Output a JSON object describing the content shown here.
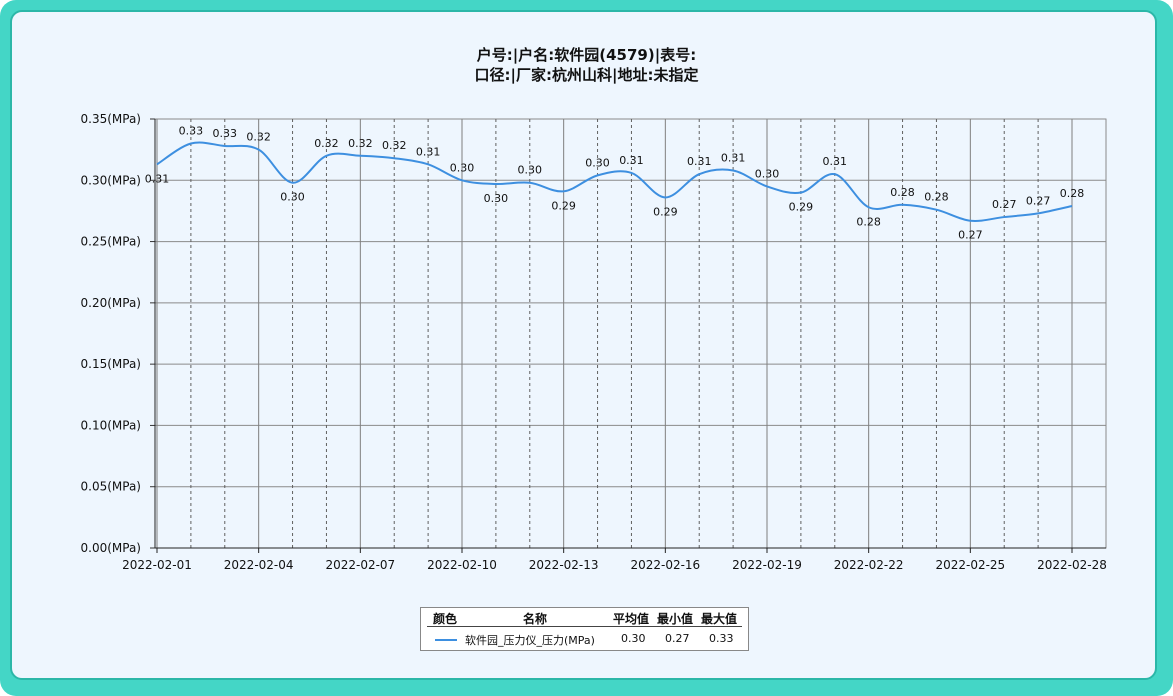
{
  "title_line1": "户号:|户名:软件园(4579)|表号:",
  "title_line2": "口径:|厂家:杭州山科|地址:未指定",
  "chart_data": {
    "type": "line",
    "series_color": "#3d8fe0",
    "y_ticks": [
      "0.00(MPa)",
      "0.05(MPa)",
      "0.10(MPa)",
      "0.15(MPa)",
      "0.20(MPa)",
      "0.25(MPa)",
      "0.30(MPa)",
      "0.35(MPa)"
    ],
    "ylim": [
      0,
      0.35
    ],
    "x_ticks": [
      "2022-02-01",
      "2022-02-04",
      "2022-02-07",
      "2022-02-10",
      "2022-02-13",
      "2022-02-16",
      "2022-02-19",
      "2022-02-22",
      "2022-02-25",
      "2022-02-28"
    ],
    "x": [
      "2022-02-01",
      "2022-02-02",
      "2022-02-03",
      "2022-02-04",
      "2022-02-05",
      "2022-02-06",
      "2022-02-07",
      "2022-02-08",
      "2022-02-09",
      "2022-02-10",
      "2022-02-11",
      "2022-02-12",
      "2022-02-13",
      "2022-02-14",
      "2022-02-15",
      "2022-02-16",
      "2022-02-17",
      "2022-02-18",
      "2022-02-19",
      "2022-02-20",
      "2022-02-21",
      "2022-02-22",
      "2022-02-23",
      "2022-02-24",
      "2022-02-25",
      "2022-02-26",
      "2022-02-27",
      "2022-02-28"
    ],
    "values": [
      0.313,
      0.33,
      0.328,
      0.325,
      0.298,
      0.32,
      0.32,
      0.318,
      0.313,
      0.3,
      0.297,
      0.298,
      0.291,
      0.304,
      0.306,
      0.286,
      0.305,
      0.308,
      0.295,
      0.29,
      0.305,
      0.278,
      0.28,
      0.276,
      0.267,
      0.27,
      0.273,
      0.279
    ],
    "labels": [
      "0.31",
      "0.33",
      "0.33",
      "0.32",
      "0.30",
      "0.32",
      "0.32",
      "0.32",
      "0.31",
      "0.30",
      "0.30",
      "0.30",
      "0.29",
      "0.30",
      "0.31",
      "0.29",
      "0.31",
      "0.31",
      "0.30",
      "0.29",
      "0.31",
      "0.28",
      "0.28",
      "0.28",
      "0.27",
      "0.27",
      "0.27",
      "0.28"
    ],
    "label_pos": [
      "below",
      "above",
      "above",
      "above",
      "below",
      "above",
      "above",
      "above",
      "above",
      "above",
      "below",
      "above",
      "below",
      "above",
      "above",
      "below",
      "above",
      "above",
      "above",
      "below",
      "above",
      "below",
      "above",
      "above",
      "below",
      "above",
      "above",
      "above"
    ]
  },
  "legend": {
    "headers": [
      "颜色",
      "名称",
      "平均值",
      "最小值",
      "最大值"
    ],
    "rows": [
      {
        "name": "软件园_压力仪_压力(MPa)",
        "avg": "0.30",
        "min": "0.27",
        "max": "0.33"
      }
    ]
  }
}
